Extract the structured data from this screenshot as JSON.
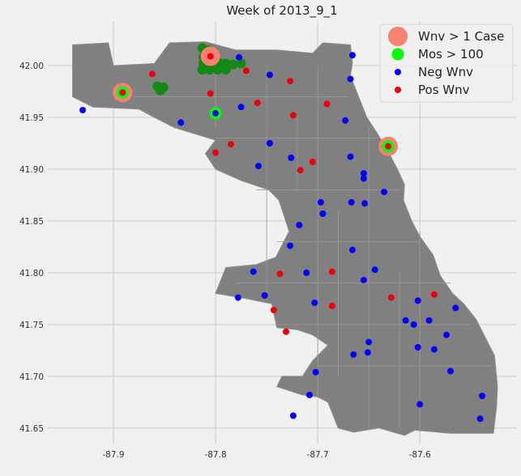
{
  "chart_data": {
    "type": "scatter",
    "title": "Week of 2013_9_1",
    "xlabel": "",
    "ylabel": "",
    "xlim": [
      -87.965,
      -87.505
    ],
    "ylim": [
      41.635,
      42.043
    ],
    "xticks": [
      -87.9,
      -87.8,
      -87.7,
      -87.6
    ],
    "xtick_labels": [
      "-87.9",
      "-87.8",
      "-87.7",
      "-87.6"
    ],
    "yticks": [
      41.65,
      41.7,
      41.75,
      41.8,
      41.85,
      41.9,
      41.95,
      42.0
    ],
    "ytick_labels": [
      "41.65",
      "41.70",
      "41.75",
      "41.80",
      "41.85",
      "41.90",
      "41.95",
      "42.00"
    ],
    "grid": true,
    "legend_position": "top-right",
    "background_map": "Chicago neighborhood boundaries (gray polygons)",
    "series": [
      {
        "name": "Wnv > 1 Case",
        "color": "#fa8072",
        "marker_size": "large",
        "points": [
          [
            -87.891,
            41.974
          ],
          [
            -87.805,
            42.009
          ],
          [
            -87.631,
            41.922
          ]
        ]
      },
      {
        "name": "Mos > 100",
        "color": "#00ff00",
        "marker_size": "medium",
        "points": [
          [
            -87.891,
            41.974
          ],
          [
            -87.8,
            41.954
          ],
          [
            -87.631,
            41.922
          ]
        ]
      },
      {
        "name": "Neg Wnv",
        "color": "#0000ff",
        "marker_size": "small",
        "points": [
          [
            -87.93,
            41.957
          ],
          [
            -87.834,
            41.945
          ],
          [
            -87.8,
            41.954
          ],
          [
            -87.777,
            42.008
          ],
          [
            -87.775,
            41.96
          ],
          [
            -87.747,
            41.991
          ],
          [
            -87.747,
            41.925
          ],
          [
            -87.758,
            41.903
          ],
          [
            -87.666,
            42.01
          ],
          [
            -87.668,
            41.987
          ],
          [
            -87.673,
            41.947
          ],
          [
            -87.668,
            41.912
          ],
          [
            -87.655,
            41.896
          ],
          [
            -87.655,
            41.891
          ],
          [
            -87.726,
            41.911
          ],
          [
            -87.697,
            41.868
          ],
          [
            -87.695,
            41.857
          ],
          [
            -87.718,
            41.846
          ],
          [
            -87.667,
            41.868
          ],
          [
            -87.654,
            41.867
          ],
          [
            -87.635,
            41.878
          ],
          [
            -87.666,
            41.822
          ],
          [
            -87.727,
            41.826
          ],
          [
            -87.711,
            41.8
          ],
          [
            -87.763,
            41.801
          ],
          [
            -87.752,
            41.778
          ],
          [
            -87.778,
            41.776
          ],
          [
            -87.703,
            41.771
          ],
          [
            -87.655,
            41.793
          ],
          [
            -87.644,
            41.803
          ],
          [
            -87.602,
            41.773
          ],
          [
            -87.614,
            41.754
          ],
          [
            -87.606,
            41.75
          ],
          [
            -87.591,
            41.754
          ],
          [
            -87.565,
            41.766
          ],
          [
            -87.574,
            41.74
          ],
          [
            -87.602,
            41.728
          ],
          [
            -87.586,
            41.726
          ],
          [
            -87.65,
            41.733
          ],
          [
            -87.651,
            41.723
          ],
          [
            -87.665,
            41.721
          ],
          [
            -87.57,
            41.705
          ],
          [
            -87.702,
            41.704
          ],
          [
            -87.708,
            41.682
          ],
          [
            -87.6,
            41.673
          ],
          [
            -87.539,
            41.681
          ],
          [
            -87.541,
            41.659
          ],
          [
            -87.724,
            41.662
          ]
        ]
      },
      {
        "name": "Pos Wnv",
        "color": "#e8000b",
        "marker_size": "small",
        "points": [
          [
            -87.891,
            41.974
          ],
          [
            -87.862,
            41.992
          ],
          [
            -87.805,
            42.009
          ],
          [
            -87.805,
            41.973
          ],
          [
            -87.77,
            41.995
          ],
          [
            -87.759,
            41.964
          ],
          [
            -87.727,
            41.985
          ],
          [
            -87.724,
            41.952
          ],
          [
            -87.691,
            41.963
          ],
          [
            -87.631,
            41.922
          ],
          [
            -87.785,
            41.924
          ],
          [
            -87.8,
            41.916
          ],
          [
            -87.717,
            41.899
          ],
          [
            -87.705,
            41.907
          ],
          [
            -87.737,
            41.799
          ],
          [
            -87.686,
            41.801
          ],
          [
            -87.743,
            41.764
          ],
          [
            -87.686,
            41.768
          ],
          [
            -87.731,
            41.743
          ],
          [
            -87.628,
            41.776
          ],
          [
            -87.586,
            41.779
          ]
        ]
      }
    ]
  }
}
